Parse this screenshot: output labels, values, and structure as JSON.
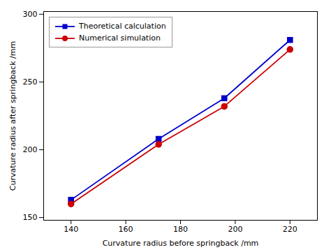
{
  "chart_data": {
    "type": "line",
    "x": [
      140,
      172,
      196,
      220
    ],
    "series": [
      {
        "name": "Theoretical calculation",
        "color": "#0000cc",
        "marker": "square",
        "values": [
          163,
          208,
          238,
          281
        ]
      },
      {
        "name": "Numerical simulation",
        "color": "#cc0000",
        "marker": "circle",
        "values": [
          160,
          204,
          232,
          274
        ]
      }
    ],
    "xlabel": "Curvature radius before springback /mm",
    "ylabel": "Curvature radius after springback /mm",
    "xlim": [
      130,
      230
    ],
    "xticks": [
      140,
      160,
      180,
      200,
      220
    ],
    "ylim": [
      148,
      302
    ],
    "yticks": [
      150,
      200,
      250,
      300
    ],
    "legend": "upper left",
    "grid": false
  }
}
